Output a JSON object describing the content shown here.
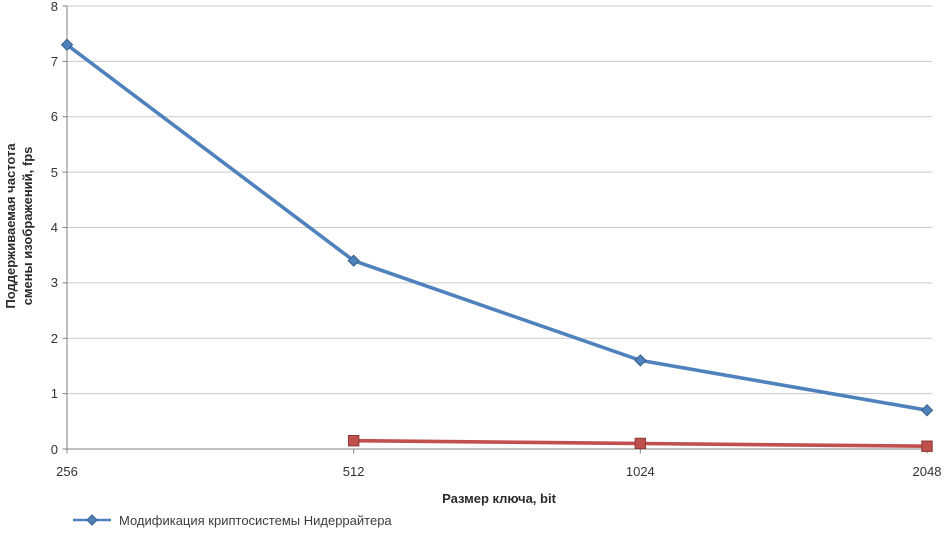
{
  "chart_data": {
    "type": "line",
    "categories": [
      "256",
      "512",
      "1024",
      "2048"
    ],
    "series": [
      {
        "name": "Модификация криптосистемы Нидеррайтера",
        "color": "#4F81BD",
        "marker": "diamond",
        "values": [
          7.3,
          3.4,
          1.6,
          0.7
        ],
        "in_legend": true
      },
      {
        "color": "#C0504D",
        "marker": "square",
        "values": [
          null,
          0.15,
          0.1,
          0.05
        ],
        "in_legend": false
      }
    ],
    "xlabel": "Размер ключа, bit",
    "ylabel": "Поддерживаемая частота смены изображений, fps",
    "ylabel_lines": [
      "Поддерживаемая частота",
      "смены изображений, fps"
    ],
    "ylim": [
      0,
      8
    ],
    "ytick_interval": 1,
    "yticks": [
      "0",
      "1",
      "2",
      "3",
      "4",
      "5",
      "6",
      "7",
      "8"
    ],
    "grid": true,
    "legend_position": "bottom-left"
  },
  "colors": {
    "grid": "#C9C9C9",
    "axis": "#808080",
    "tick_text": "#333333",
    "title_text": "#2b2b2b",
    "background": "#ffffff"
  }
}
